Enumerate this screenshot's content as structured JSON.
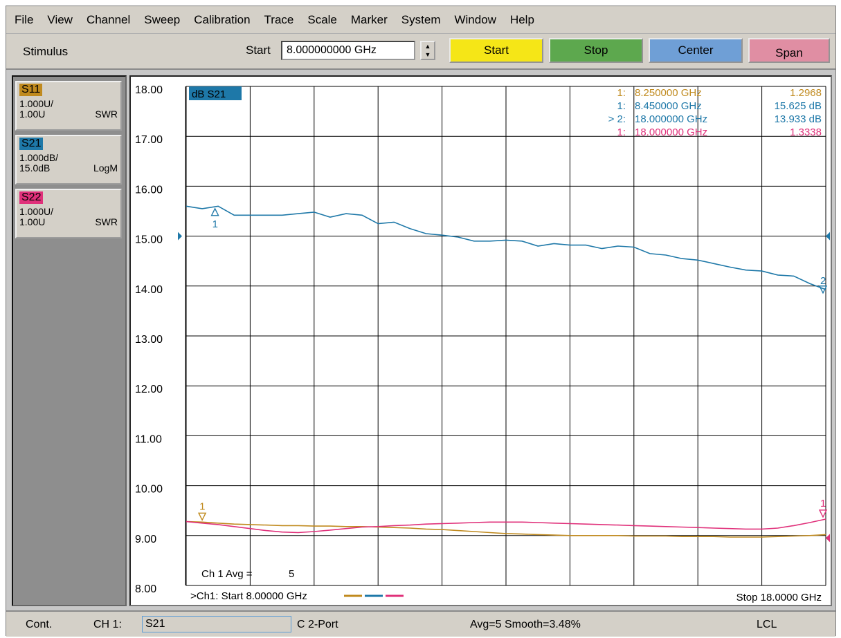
{
  "menu": [
    "File",
    "View",
    "Channel",
    "Sweep",
    "Calibration",
    "Trace",
    "Scale",
    "Marker",
    "System",
    "Window",
    "Help"
  ],
  "stimulus": {
    "label": "Stimulus",
    "start_label": "Start",
    "start_value": "8.000000000 GHz",
    "buttons": [
      {
        "label": "Start",
        "color": "#f5e617"
      },
      {
        "label": "Stop",
        "color": "#5da84e"
      },
      {
        "label": "Center",
        "color": "#6f9fd6"
      },
      {
        "label": "Span",
        "color": "#e08ea3"
      }
    ]
  },
  "traces": [
    {
      "name": "S11",
      "color": "#c08a1e",
      "scale": "1.000U/",
      "ref": "1.00U",
      "format": "SWR"
    },
    {
      "name": "S21",
      "color": "#1e78a8",
      "scale": "1.000dB/",
      "ref": "15.0dB",
      "format": "LogM"
    },
    {
      "name": "S22",
      "color": "#e0307a",
      "scale": "1.000U/",
      "ref": "1.00U",
      "format": "SWR"
    }
  ],
  "plot": {
    "active_trace_label": "dB S21",
    "markers": [
      {
        "num": "1:",
        "freq": "8.250000 GHz",
        "value": "1.2968",
        "color": "#c08a1e"
      },
      {
        "num": "1:",
        "freq": "8.450000 GHz",
        "value": "15.625 dB",
        "color": "#1e78a8"
      },
      {
        "num": "> 2:",
        "freq": "18.000000 GHz",
        "value": "13.933 dB",
        "color": "#1e78a8"
      },
      {
        "num": "1:",
        "freq": "18.000000 GHz",
        "value": "1.3338",
        "color": "#e0307a"
      }
    ],
    "avg_label": "Ch 1 Avg =",
    "avg_value": "5",
    "start_footer": ">Ch1: Start  8.00000 GHz",
    "stop_footer": "Stop  18.0000 GHz",
    "marker_tags": [
      "1",
      "1",
      "2",
      "1"
    ]
  },
  "chart_data": {
    "type": "line",
    "ylim": [
      8,
      18
    ],
    "xlim": [
      8,
      18
    ],
    "y_ticks": [
      "18.00",
      "17.00",
      "16.00",
      "15.00",
      "14.00",
      "13.00",
      "12.00",
      "11.00",
      "10.00",
      "9.00",
      "8.00"
    ],
    "x": [
      8.0,
      8.25,
      8.5,
      8.75,
      9.0,
      9.25,
      9.5,
      9.75,
      10.0,
      10.25,
      10.5,
      10.75,
      11.0,
      11.25,
      11.5,
      11.75,
      12.0,
      12.25,
      12.5,
      12.75,
      13.0,
      13.25,
      13.5,
      13.75,
      14.0,
      14.25,
      14.5,
      14.75,
      15.0,
      15.25,
      15.5,
      15.75,
      16.0,
      16.25,
      16.5,
      16.75,
      17.0,
      17.25,
      17.5,
      17.75,
      18.0
    ],
    "series": [
      {
        "name": "S21",
        "color": "#1e78a8",
        "values": [
          15.6,
          15.55,
          15.6,
          15.42,
          15.42,
          15.42,
          15.42,
          15.45,
          15.48,
          15.38,
          15.45,
          15.42,
          15.25,
          15.28,
          15.15,
          15.05,
          15.02,
          14.98,
          14.9,
          14.9,
          14.92,
          14.9,
          14.8,
          14.85,
          14.82,
          14.82,
          14.75,
          14.8,
          14.78,
          14.65,
          14.62,
          14.55,
          14.52,
          14.45,
          14.38,
          14.32,
          14.3,
          14.22,
          14.2,
          14.05,
          13.93
        ]
      },
      {
        "name": "S11",
        "color": "#c08a1e",
        "values": [
          9.28,
          9.27,
          9.25,
          9.23,
          9.22,
          9.21,
          9.2,
          9.2,
          9.19,
          9.19,
          9.18,
          9.18,
          9.17,
          9.16,
          9.15,
          9.13,
          9.12,
          9.1,
          9.08,
          9.06,
          9.04,
          9.03,
          9.02,
          9.01,
          9.0,
          9.0,
          9.0,
          9.0,
          8.99,
          8.99,
          8.99,
          8.98,
          8.98,
          8.98,
          8.97,
          8.97,
          8.97,
          8.98,
          8.99,
          9.0,
          9.02
        ]
      },
      {
        "name": "S22",
        "color": "#e0307a",
        "values": [
          9.28,
          9.25,
          9.22,
          9.18,
          9.14,
          9.1,
          9.07,
          9.06,
          9.08,
          9.11,
          9.14,
          9.17,
          9.18,
          9.2,
          9.21,
          9.23,
          9.24,
          9.25,
          9.26,
          9.27,
          9.27,
          9.27,
          9.26,
          9.25,
          9.24,
          9.23,
          9.22,
          9.21,
          9.2,
          9.19,
          9.18,
          9.17,
          9.16,
          9.15,
          9.14,
          9.13,
          9.13,
          9.15,
          9.2,
          9.26,
          9.33
        ]
      }
    ]
  },
  "status": {
    "mode": "Cont.",
    "channel_label": "CH 1:",
    "channel_trace": "S21",
    "cal": "C  2-Port",
    "avg_smooth": "Avg=5 Smooth=3.48%",
    "remote": "LCL"
  }
}
